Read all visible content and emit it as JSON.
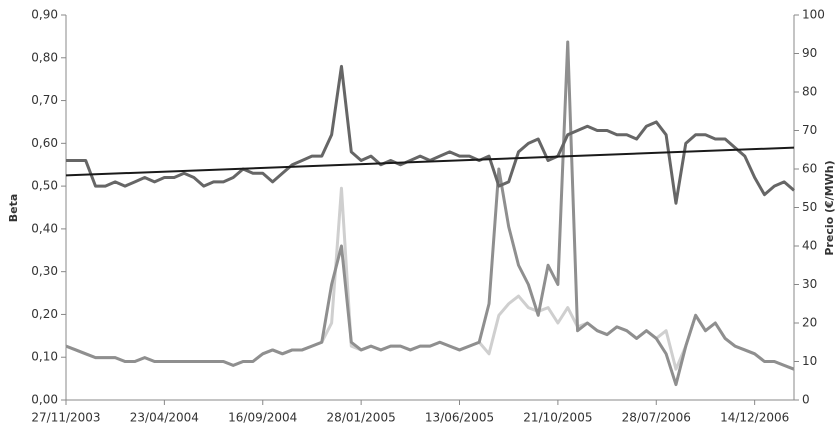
{
  "chart_data": {
    "type": "line",
    "y_label": "Beta",
    "y2_label": "Precio (€/MWh)",
    "categories": [
      "27/11/2003",
      null,
      null,
      null,
      null,
      null,
      null,
      null,
      null,
      null,
      "23/04/2004",
      null,
      null,
      null,
      null,
      null,
      null,
      null,
      null,
      null,
      "16/09/2004",
      null,
      null,
      null,
      null,
      null,
      null,
      null,
      null,
      null,
      "28/01/2005",
      null,
      null,
      null,
      null,
      null,
      null,
      null,
      null,
      null,
      "13/06/2005",
      null,
      null,
      null,
      null,
      null,
      null,
      null,
      null,
      null,
      "21/10/2005",
      null,
      null,
      null,
      null,
      null,
      null,
      null,
      null,
      null,
      "28/07/2006",
      null,
      null,
      null,
      null,
      null,
      null,
      null,
      null,
      null,
      "14/12/2006",
      null,
      null,
      null,
      null
    ],
    "series": [
      {
        "color": "#cfcfcf",
        "axis": "y2",
        "values": [
          14,
          13,
          12,
          11,
          11,
          11,
          10,
          10,
          11,
          10,
          10,
          10,
          10,
          10,
          10,
          10,
          10,
          9,
          10,
          10,
          12,
          13,
          12,
          13,
          13,
          14,
          15,
          20,
          55,
          14,
          13,
          14,
          13,
          14,
          14,
          13,
          14,
          14,
          15,
          14,
          13,
          14,
          15,
          12,
          22,
          25,
          27,
          24,
          23,
          24,
          20,
          24,
          19,
          20,
          18,
          17,
          19,
          18,
          16,
          18,
          16,
          18,
          8,
          14,
          22,
          18,
          20,
          16,
          14,
          13,
          12,
          10,
          10,
          9,
          8
        ]
      },
      {
        "color": "#8f8f8f",
        "axis": "y2",
        "values": [
          14,
          13,
          12,
          11,
          11,
          11,
          10,
          10,
          11,
          10,
          10,
          10,
          10,
          10,
          10,
          10,
          10,
          9,
          10,
          10,
          12,
          13,
          12,
          13,
          13,
          14,
          15,
          30,
          40,
          15,
          13,
          14,
          13,
          14,
          14,
          13,
          14,
          14,
          15,
          14,
          13,
          14,
          15,
          25,
          60,
          45,
          35,
          30,
          22,
          35,
          30,
          93,
          18,
          20,
          18,
          17,
          19,
          18,
          16,
          18,
          16,
          12,
          4,
          14,
          22,
          18,
          20,
          16,
          14,
          13,
          12,
          10,
          10,
          9,
          8
        ]
      },
      {
        "color": "#666666",
        "values": [
          0.56,
          0.56,
          0.56,
          0.5,
          0.5,
          0.51,
          0.5,
          0.51,
          0.52,
          0.51,
          0.52,
          0.52,
          0.53,
          0.52,
          0.5,
          0.51,
          0.51,
          0.52,
          0.54,
          0.53,
          0.53,
          0.51,
          0.53,
          0.55,
          0.56,
          0.57,
          0.57,
          0.62,
          0.78,
          0.58,
          0.56,
          0.57,
          0.55,
          0.56,
          0.55,
          0.56,
          0.57,
          0.56,
          0.57,
          0.58,
          0.57,
          0.57,
          0.56,
          0.57,
          0.5,
          0.51,
          0.58,
          0.6,
          0.61,
          0.56,
          0.57,
          0.62,
          0.63,
          0.64,
          0.63,
          0.63,
          0.62,
          0.62,
          0.61,
          0.64,
          0.65,
          0.62,
          0.46,
          0.6,
          0.62,
          0.62,
          0.61,
          0.61,
          0.59,
          0.57,
          0.52,
          0.48,
          0.5,
          0.51,
          0.49
        ]
      }
    ],
    "trend": {
      "color": "#1a1a1a",
      "values": [
        0.525,
        0.59
      ]
    },
    "ylim": [
      0,
      0.9
    ],
    "yticks": [
      {
        "value": 0,
        "label": "0,00"
      },
      {
        "value": 0.1,
        "label": "0,10"
      },
      {
        "value": 0.2,
        "label": "0,20"
      },
      {
        "value": 0.3,
        "label": "0,30"
      },
      {
        "value": 0.4,
        "label": "0,40"
      },
      {
        "value": 0.5,
        "label": "0,50"
      },
      {
        "value": 0.6,
        "label": "0,60"
      },
      {
        "value": 0.7,
        "label": "0,70"
      },
      {
        "value": 0.8,
        "label": "0,80"
      },
      {
        "value": 0.9,
        "label": "0,90"
      }
    ],
    "y2lim": [
      0,
      100
    ],
    "y2ticks": [
      0,
      10,
      20,
      30,
      40,
      50,
      60,
      70,
      80,
      90,
      100
    ]
  }
}
